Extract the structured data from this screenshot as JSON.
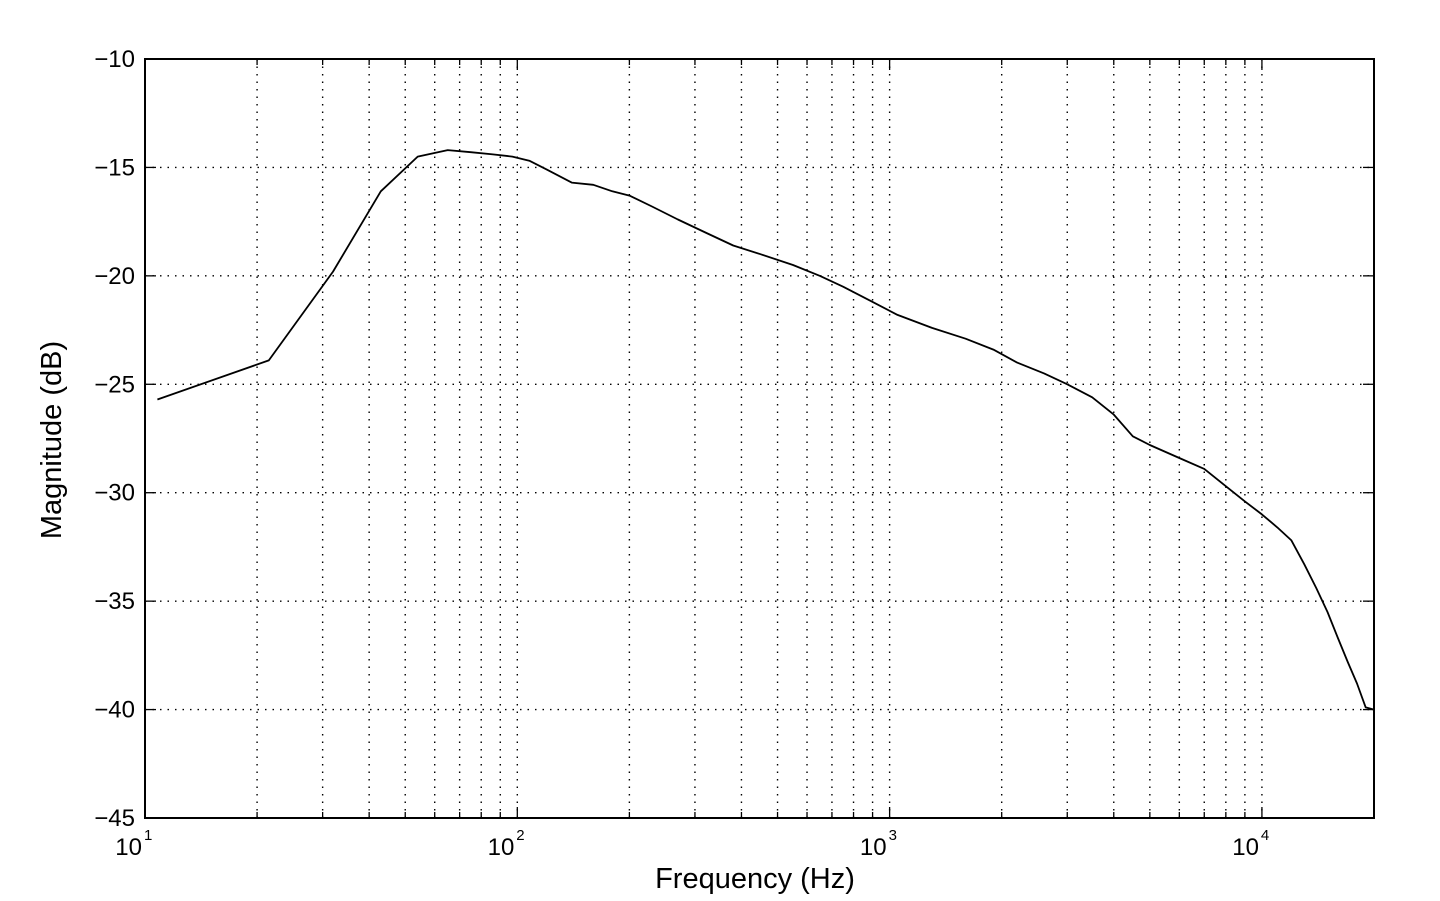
{
  "chart_data": {
    "type": "line",
    "title": "",
    "xlabel": "Frequency (Hz)",
    "ylabel": "Magnitude (dB)",
    "x_scale": "log",
    "xlim": [
      10,
      20000
    ],
    "ylim": [
      -45,
      -10
    ],
    "grid": true,
    "legend": "none",
    "line_color": "#000000",
    "x_ticks": [
      {
        "value": 10,
        "base": "10",
        "exp": "1"
      },
      {
        "value": 100,
        "base": "10",
        "exp": "2"
      },
      {
        "value": 1000,
        "base": "10",
        "exp": "3"
      },
      {
        "value": 10000,
        "base": "10",
        "exp": "4"
      }
    ],
    "y_ticks": [
      {
        "value": -10,
        "label": "−10"
      },
      {
        "value": -15,
        "label": "−15"
      },
      {
        "value": -20,
        "label": "−20"
      },
      {
        "value": -25,
        "label": "−25"
      },
      {
        "value": -30,
        "label": "−30"
      },
      {
        "value": -35,
        "label": "−35"
      },
      {
        "value": -40,
        "label": "−40"
      },
      {
        "value": -45,
        "label": "−45"
      }
    ],
    "series": [
      {
        "x": [
          10.8,
          21.5,
          32,
          43,
          54,
          65,
          75,
          86,
          97,
          108,
          120,
          140,
          160,
          180,
          200,
          230,
          270,
          320,
          380,
          450,
          550,
          650,
          750,
          900,
          1050,
          1300,
          1600,
          1900,
          2200,
          2600,
          3000,
          3500,
          4000,
          4500,
          5000,
          6000,
          7000,
          8000,
          9000,
          10000,
          11000,
          12000,
          13000,
          14000,
          15000,
          16000,
          17000,
          18000,
          19000,
          20000
        ],
        "y": [
          -25.7,
          -23.9,
          -19.8,
          -16.1,
          -14.5,
          -14.2,
          -14.3,
          -14.4,
          -14.5,
          -14.7,
          -15.1,
          -15.7,
          -15.8,
          -16.1,
          -16.3,
          -16.8,
          -17.4,
          -18.0,
          -18.6,
          -19.0,
          -19.5,
          -20.0,
          -20.5,
          -21.2,
          -21.8,
          -22.4,
          -22.9,
          -23.4,
          -24.0,
          -24.5,
          -25.0,
          -25.6,
          -26.4,
          -27.4,
          -27.8,
          -28.4,
          -28.9,
          -29.7,
          -30.4,
          -31.0,
          -31.6,
          -32.2,
          -33.3,
          -34.4,
          -35.5,
          -36.7,
          -37.8,
          -38.8,
          -39.9,
          -40.0
        ]
      }
    ]
  }
}
